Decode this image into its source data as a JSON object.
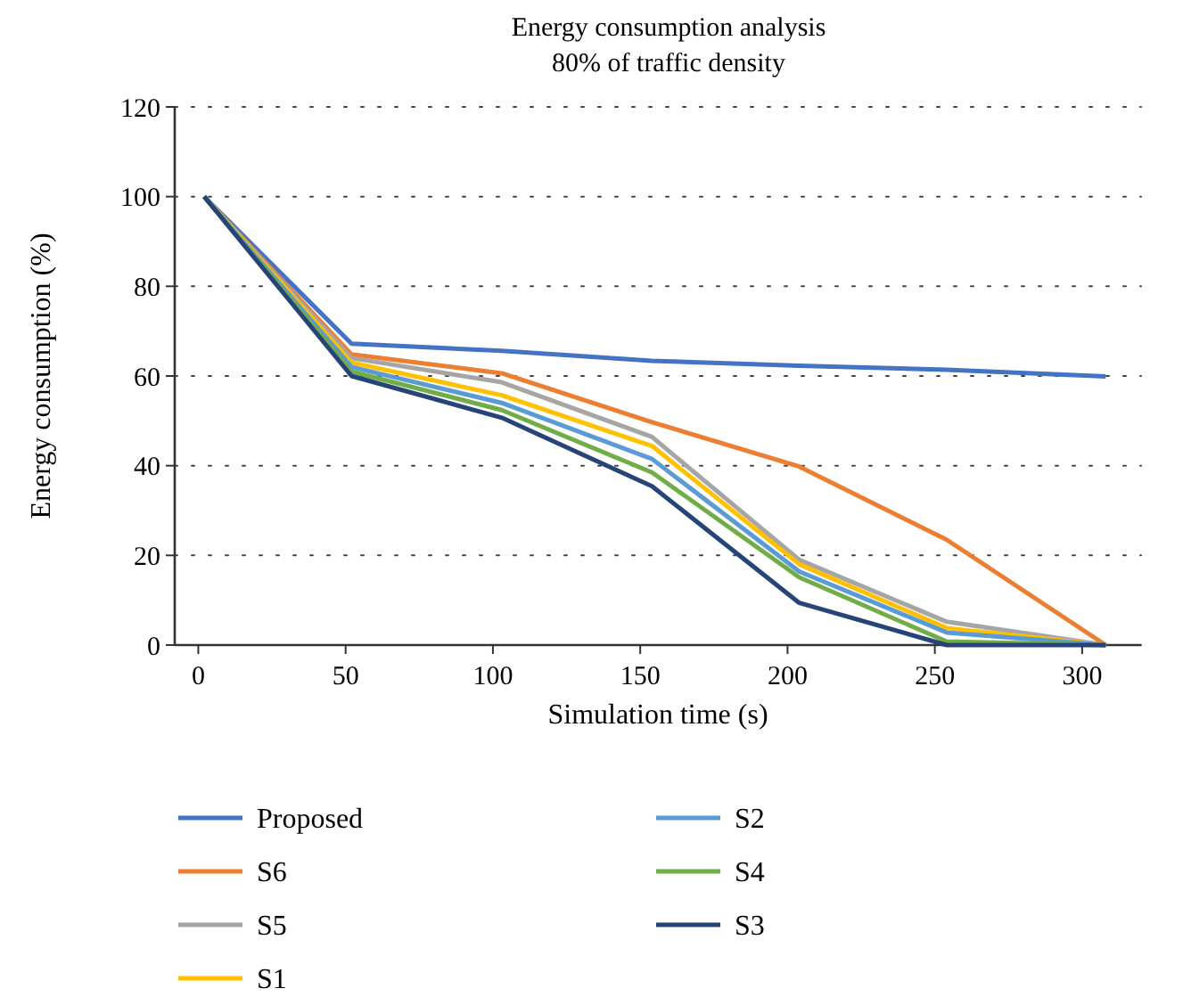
{
  "chart_data": {
    "type": "line",
    "title": "Energy consumption analysis",
    "subtitle": "80% of traffic density",
    "xlabel": "Simulation time (s)",
    "ylabel": "Energy consumption (%)",
    "x": [
      2,
      52,
      103,
      154,
      204,
      254,
      308
    ],
    "xlim": [
      -8,
      320
    ],
    "xticks": [
      0,
      50,
      100,
      150,
      200,
      250,
      300
    ],
    "ylim": [
      0,
      120
    ],
    "yticks": [
      0,
      20,
      40,
      60,
      80,
      100,
      120
    ],
    "grid": "y",
    "legend": "bottom",
    "line_style": "solid",
    "marker": "none",
    "series": [
      {
        "name": "Proposed",
        "color": "#4472c4",
        "values": [
          100,
          67.2,
          65.6,
          63.4,
          62.3,
          61.4,
          59.9
        ]
      },
      {
        "name": "S6",
        "color": "#ed7d31",
        "values": [
          100,
          64.8,
          60.6,
          49.7,
          39.8,
          23.5,
          0
        ]
      },
      {
        "name": "S5",
        "color": "#a5a5a5",
        "values": [
          100,
          64,
          58.6,
          46.4,
          19,
          5.2,
          0
        ]
      },
      {
        "name": "S1",
        "color": "#ffc000",
        "values": [
          100,
          63,
          55.7,
          44.4,
          18,
          3.8,
          0
        ]
      },
      {
        "name": "S2",
        "color": "#5b9bd5",
        "values": [
          100,
          62,
          54,
          41.5,
          16.4,
          2.8,
          0
        ]
      },
      {
        "name": "S4",
        "color": "#70ad47",
        "values": [
          100,
          61,
          52.4,
          38.5,
          15.1,
          0.8,
          0
        ]
      },
      {
        "name": "S3",
        "color": "#264478",
        "values": [
          100,
          60,
          50.7,
          35.4,
          9.4,
          0,
          0
        ]
      }
    ]
  }
}
